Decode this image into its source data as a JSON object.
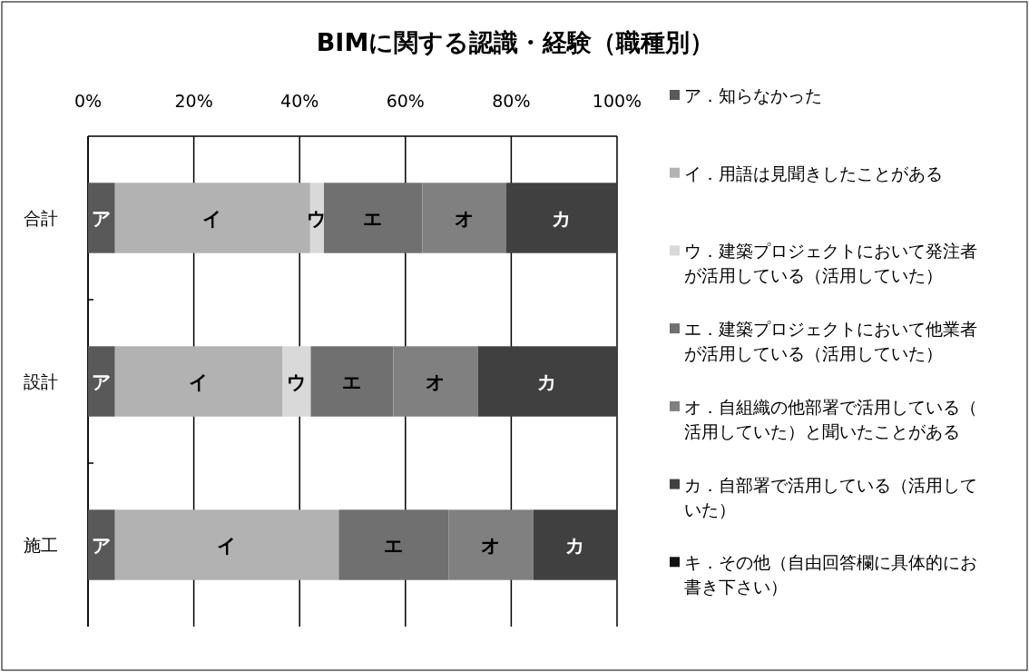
{
  "chart_data": {
    "type": "bar",
    "orientation": "horizontal",
    "stacked": true,
    "title": "BIMに関する認識・経験（職種別）",
    "categories": [
      "合計",
      "設計",
      "施工"
    ],
    "series": [
      {
        "name": "ア．知らなかった",
        "color": "#595959",
        "values": [
          5.1,
          5.1,
          5.1
        ],
        "value_labels": [
          "ア",
          "ア",
          "ア"
        ]
      },
      {
        "name": "イ．用語は見聞きしたことがある",
        "color": "#b2b2b2",
        "values": [
          36.9,
          31.7,
          42.3
        ],
        "value_labels": [
          "イ",
          "イ",
          "イ"
        ]
      },
      {
        "name": "ウ．建築プロジェクトにおいて発注者が活用している（活用していた）",
        "color": "#d9d9d9",
        "values": [
          2.6,
          5.3,
          0
        ],
        "value_labels": [
          "ウ",
          "ウ",
          null
        ]
      },
      {
        "name": "エ．建築プロジェクトにおいて他業者が活用している（活用していた）",
        "color": "#707070",
        "values": [
          18.6,
          15.6,
          20.8
        ],
        "value_labels": [
          "エ",
          "エ",
          "エ"
        ]
      },
      {
        "name": "オ．自組織の他部署で活用している（活用していた）と聞いたことがある",
        "color": "#808080",
        "values": [
          15.8,
          16.0,
          16.0
        ],
        "value_labels": [
          "オ",
          "オ",
          "オ"
        ]
      },
      {
        "name": "カ．自部署で活用している（活用していた）",
        "color": "#404040",
        "values": [
          21.0,
          26.3,
          15.8
        ],
        "value_labels": [
          "カ",
          "カ",
          "カ"
        ]
      },
      {
        "name": "キ．その他（自由回答欄に具体的にお書き下さい）",
        "color": "#111111",
        "values": [
          0,
          0,
          0
        ],
        "value_labels": [
          null,
          null,
          null
        ]
      }
    ],
    "xlim": [
      0,
      100
    ],
    "xticks": [
      {
        "value": 0,
        "label": "0%"
      },
      {
        "value": 20,
        "label": "20%"
      },
      {
        "value": 40,
        "label": "40%"
      },
      {
        "value": 60,
        "label": "60%"
      },
      {
        "value": 80,
        "label": "80%"
      },
      {
        "value": 100,
        "label": "100%"
      }
    ],
    "grid": "x",
    "legend": "right"
  }
}
